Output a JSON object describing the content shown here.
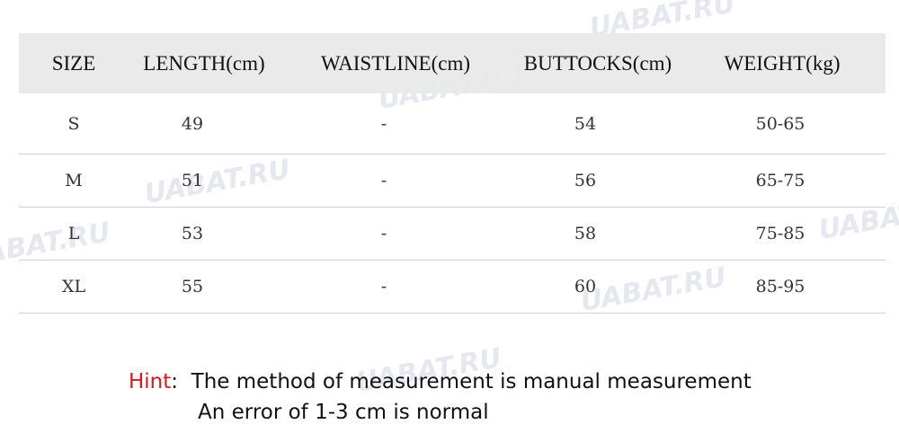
{
  "watermark": "UABAT.RU",
  "table": {
    "headers": [
      "SIZE",
      "LENGTH(cm)",
      "WAISTLINE(cm)",
      "BUTTOCKS(cm)",
      "WEIGHT(kg)"
    ],
    "rows": [
      [
        "S",
        "49",
        "-",
        "54",
        "50-65"
      ],
      [
        "M",
        "51",
        "-",
        "56",
        "65-75"
      ],
      [
        "L",
        "53",
        "-",
        "58",
        "75-85"
      ],
      [
        "XL",
        "55",
        "-",
        "60",
        "85-95"
      ]
    ]
  },
  "hint": {
    "label": "Hint",
    "separator": ":",
    "line1": "The method of measurement is manual measurement",
    "line2": "An error of 1-3 cm is normal"
  },
  "colors": {
    "hint_label": "#e0141e",
    "header_bg": "#e8e8e8"
  }
}
